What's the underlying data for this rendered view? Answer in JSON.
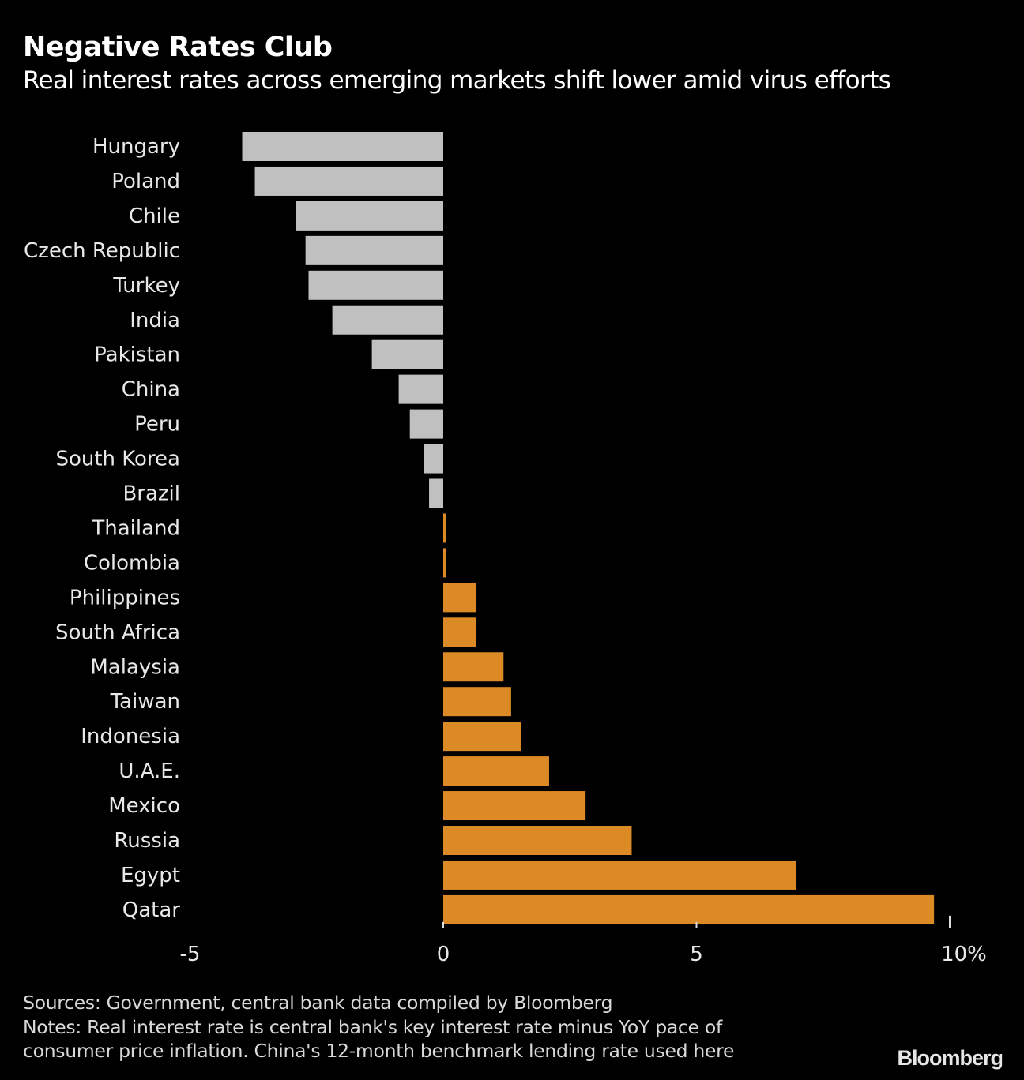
{
  "chart_data": {
    "type": "bar",
    "orientation": "horizontal",
    "title": "Negative Rates Club",
    "subtitle": "Real interest rates across emerging markets shift lower amid virus efforts",
    "xlabel": "",
    "ylabel": "",
    "xlim": [
      -5,
      10
    ],
    "x_ticks": [
      -5,
      0,
      5,
      10
    ],
    "x_tick_labels": [
      "-5",
      "0",
      "5",
      "10%"
    ],
    "grid": false,
    "categories": [
      "Hungary",
      "Poland",
      "Chile",
      "Czech Republic",
      "Turkey",
      "India",
      "Pakistan",
      "China",
      "Peru",
      "South Korea",
      "Brazil",
      "Thailand",
      "Colombia",
      "Philippines",
      "South Africa",
      "Malaysia",
      "Taiwan",
      "Indonesia",
      "U.A.E.",
      "Mexico",
      "Russia",
      "Egypt",
      "Qatar"
    ],
    "values": [
      -3.97,
      -3.72,
      -2.91,
      -2.72,
      -2.66,
      -2.19,
      -1.41,
      -0.88,
      -0.66,
      -0.38,
      -0.28,
      0.06,
      0.06,
      0.65,
      0.65,
      1.19,
      1.34,
      1.53,
      2.09,
      2.81,
      3.72,
      6.97,
      9.69
    ],
    "colors": {
      "negative": "#c0c0c0",
      "positive": "#dc8a25"
    }
  },
  "footer": {
    "sources": "Sources: Government, central bank data compiled by Bloomberg",
    "notes_line1": "Notes: Real interest rate is central bank's key interest rate minus YoY pace of",
    "notes_line2": "consumer price inflation. China's 12-month benchmark lending rate used here",
    "brand": "Bloomberg"
  }
}
